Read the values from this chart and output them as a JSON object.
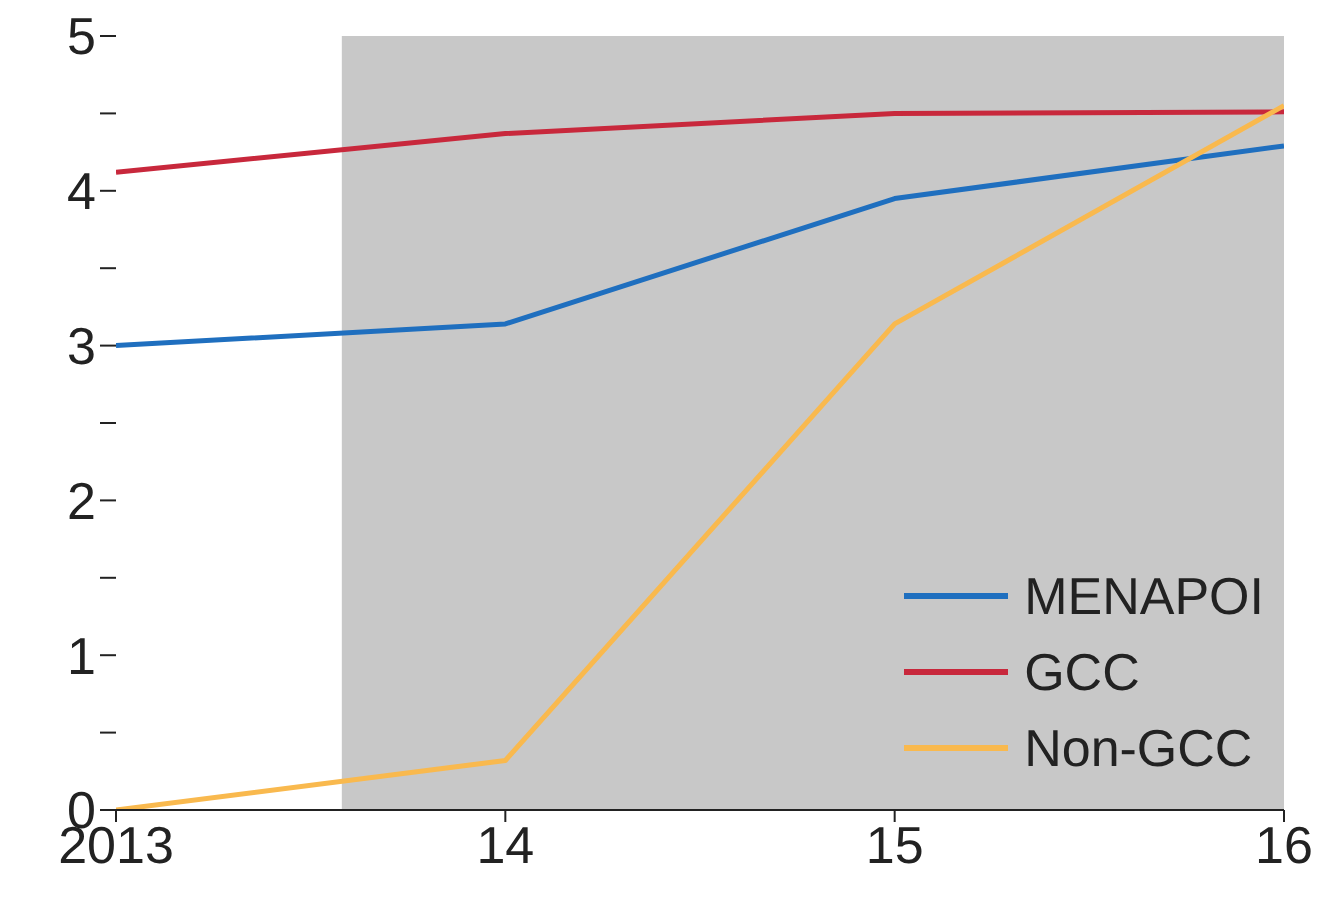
{
  "chart_data": {
    "type": "line",
    "x": [
      2013,
      2014,
      2015,
      2016
    ],
    "series": [
      {
        "name": "MENAPOI",
        "color": "#1f6fbf",
        "values": [
          3.0,
          3.14,
          3.95,
          4.29
        ]
      },
      {
        "name": "GCC",
        "color": "#c8283c",
        "values": [
          4.12,
          4.37,
          4.5,
          4.51
        ]
      },
      {
        "name": "Non-GCC",
        "color": "#f9b94e",
        "values": [
          0,
          0.32,
          3.14,
          4.55
        ]
      }
    ],
    "xlim": [
      2013,
      2016
    ],
    "xticks": [
      {
        "value": 2013,
        "label": "2013"
      },
      {
        "value": 2014,
        "label": "14"
      },
      {
        "value": 2015,
        "label": "15"
      },
      {
        "value": 2016,
        "label": "16"
      }
    ],
    "ylim": [
      0,
      5
    ],
    "yticks": [
      0,
      {
        "value": 0.5,
        "label": null
      },
      1,
      {
        "value": 1.5,
        "label": null
      },
      2,
      {
        "value": 2.5,
        "label": null
      },
      3,
      {
        "value": 3.5,
        "label": null
      },
      4,
      {
        "value": 4.5,
        "label": null
      },
      5
    ],
    "bands": [
      {
        "axis": "x",
        "from": 2013.58,
        "to": 2016,
        "color": "#c8c8c8"
      }
    ],
    "legend": "bottom right",
    "grid": false,
    "marker": "none",
    "line_style": "solid"
  }
}
